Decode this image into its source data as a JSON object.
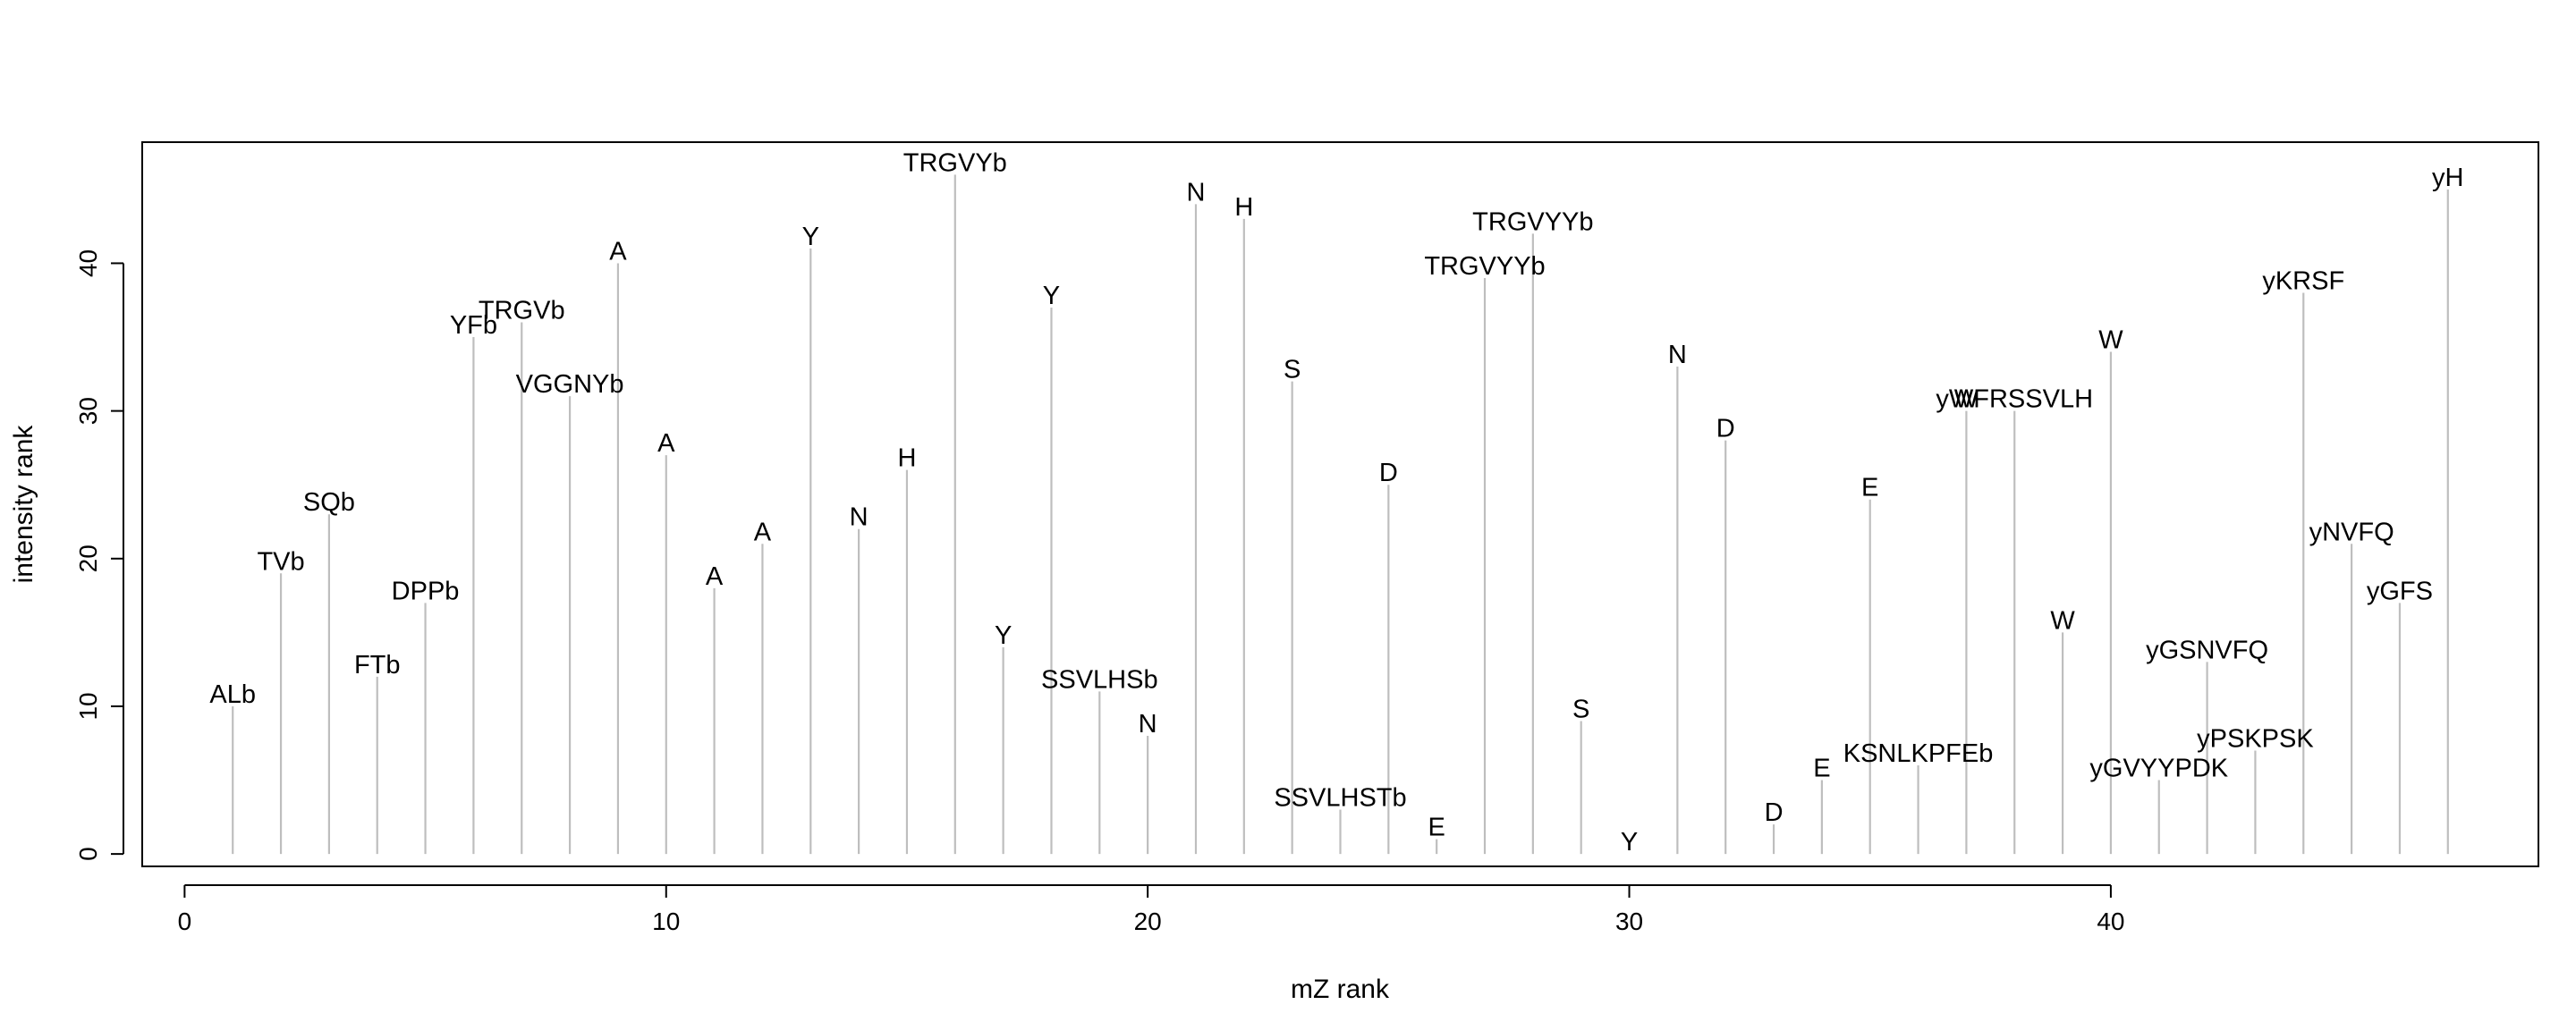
{
  "chart_data": {
    "type": "stem",
    "xlabel": "mZ rank",
    "ylabel": "intensity rank",
    "xlim": [
      -0.88,
      48.88
    ],
    "ylim": [
      -0.84,
      48.2
    ],
    "xticks": [
      0,
      10,
      20,
      30,
      40
    ],
    "yticks": [
      0,
      10,
      20,
      30,
      40
    ],
    "grid": false,
    "stem_color": "#bebebe",
    "points": [
      {
        "x": 1,
        "y": 10,
        "label": "ALb"
      },
      {
        "x": 2,
        "y": 19,
        "label": "TVb"
      },
      {
        "x": 3,
        "y": 23,
        "label": "SQb"
      },
      {
        "x": 4,
        "y": 12,
        "label": "FTb"
      },
      {
        "x": 5,
        "y": 17,
        "label": "DPPb"
      },
      {
        "x": 6,
        "y": 35,
        "label": "YFb"
      },
      {
        "x": 7,
        "y": 36,
        "label": "TRGVb"
      },
      {
        "x": 8,
        "y": 31,
        "label": "VGGNYb"
      },
      {
        "x": 9,
        "y": 40,
        "label": "A"
      },
      {
        "x": 10,
        "y": 27,
        "label": "A"
      },
      {
        "x": 11,
        "y": 18,
        "label": "A"
      },
      {
        "x": 12,
        "y": 21,
        "label": "A"
      },
      {
        "x": 13,
        "y": 41,
        "label": "Y"
      },
      {
        "x": 14,
        "y": 22,
        "label": "N"
      },
      {
        "x": 15,
        "y": 26,
        "label": "H"
      },
      {
        "x": 16,
        "y": 46,
        "label": "TRGVYb"
      },
      {
        "x": 17,
        "y": 14,
        "label": "Y"
      },
      {
        "x": 18,
        "y": 37,
        "label": "Y"
      },
      {
        "x": 19,
        "y": 11,
        "label": "SSVLHSb"
      },
      {
        "x": 20,
        "y": 8,
        "label": "N"
      },
      {
        "x": 21,
        "y": 44,
        "label": "N"
      },
      {
        "x": 22,
        "y": 43,
        "label": "H"
      },
      {
        "x": 23,
        "y": 32,
        "label": "S"
      },
      {
        "x": 24,
        "y": 3,
        "label": "SSVLHSTb"
      },
      {
        "x": 25,
        "y": 25,
        "label": "D"
      },
      {
        "x": 26,
        "y": 1,
        "label": "E"
      },
      {
        "x": 27,
        "y": 39,
        "label": "TRGVYYb"
      },
      {
        "x": 28,
        "y": 42,
        "label": "TRGVYYb"
      },
      {
        "x": 29,
        "y": 9,
        "label": "S"
      },
      {
        "x": 30,
        "y": 0,
        "label": "Y"
      },
      {
        "x": 31,
        "y": 33,
        "label": "N"
      },
      {
        "x": 32,
        "y": 28,
        "label": "D"
      },
      {
        "x": 33,
        "y": 2,
        "label": "D"
      },
      {
        "x": 34,
        "y": 5,
        "label": "E"
      },
      {
        "x": 35,
        "y": 24,
        "label": "E"
      },
      {
        "x": 36,
        "y": 6,
        "label": "KSNLKPFEb"
      },
      {
        "x": 37,
        "y": 30,
        "label": "W"
      },
      {
        "x": 38,
        "y": 30,
        "label": "yWFRSSVLH"
      },
      {
        "x": 39,
        "y": 15,
        "label": "W"
      },
      {
        "x": 40,
        "y": 34,
        "label": "W"
      },
      {
        "x": 41,
        "y": 5,
        "label": "yGVYYPDK"
      },
      {
        "x": 42,
        "y": 13,
        "label": "yGSNVFQ"
      },
      {
        "x": 43,
        "y": 7,
        "label": "yPSKPSK"
      },
      {
        "x": 44,
        "y": 38,
        "label": "yKRSF"
      },
      {
        "x": 45,
        "y": 21,
        "label": "yNVFQ"
      },
      {
        "x": 46,
        "y": 17,
        "label": "yGFS"
      },
      {
        "x": 47,
        "y": 45,
        "label": "yH"
      }
    ]
  }
}
